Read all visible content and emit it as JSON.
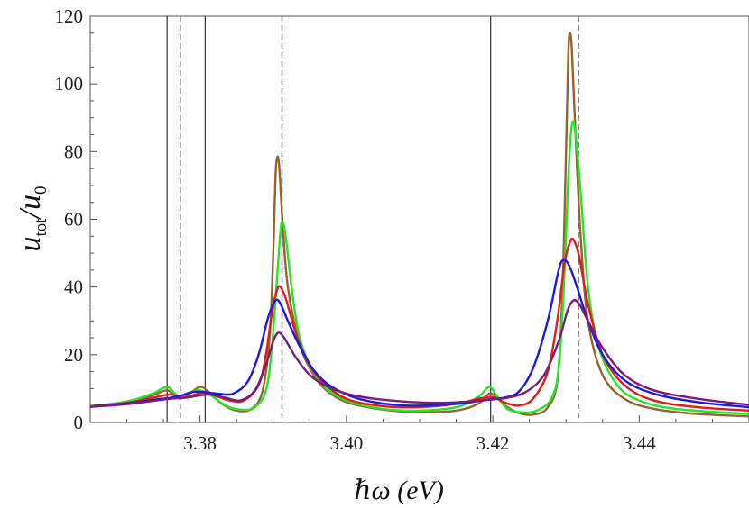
{
  "chart_data": {
    "type": "line",
    "xlabel": "ℏω (eV)",
    "ylabel_main": "u",
    "ylabel_sub_top": "tot",
    "ylabel_slash": "/",
    "ylabel_sub_bottom": "0",
    "xlim": [
      3.365,
      3.455
    ],
    "ylim": [
      0,
      120
    ],
    "x_ticks": [
      3.38,
      3.4,
      3.42,
      3.44
    ],
    "x_tick_labels": [
      "3.38",
      "3.40",
      "3.42",
      "3.44"
    ],
    "y_ticks": [
      0,
      20,
      40,
      60,
      80,
      100,
      120
    ],
    "y_tick_labels": [
      "0",
      "20",
      "40",
      "60",
      "80",
      "100",
      "120"
    ],
    "grid": false,
    "legend": "none",
    "vlines_solid": [
      3.3755,
      3.3807,
      3.4197
    ],
    "vlines_dashed": [
      3.3773,
      3.3912,
      3.4317
    ],
    "series": [
      {
        "color": "#96642f",
        "points": [
          [
            3.365,
            4.8
          ],
          [
            3.37,
            6.0
          ],
          [
            3.3735,
            8.0
          ],
          [
            3.3755,
            9.5
          ],
          [
            3.377,
            7.5
          ],
          [
            3.3785,
            8.5
          ],
          [
            3.38,
            10.5
          ],
          [
            3.3812,
            9.0
          ],
          [
            3.383,
            5.5
          ],
          [
            3.385,
            3.5
          ],
          [
            3.387,
            4.0
          ],
          [
            3.3885,
            9.0
          ],
          [
            3.3895,
            25
          ],
          [
            3.39,
            50
          ],
          [
            3.3903,
            72
          ],
          [
            3.3905,
            78
          ],
          [
            3.3908,
            76
          ],
          [
            3.3913,
            58
          ],
          [
            3.392,
            40
          ],
          [
            3.3935,
            24
          ],
          [
            3.395,
            16
          ],
          [
            3.397,
            10
          ],
          [
            3.4,
            6.0
          ],
          [
            3.405,
            3.8
          ],
          [
            3.41,
            3.0
          ],
          [
            3.415,
            3.5
          ],
          [
            3.418,
            5.5
          ],
          [
            3.4195,
            8.5
          ],
          [
            3.4205,
            7.5
          ],
          [
            3.422,
            4.5
          ],
          [
            3.424,
            2.5
          ],
          [
            3.426,
            2.5
          ],
          [
            3.4275,
            4.5
          ],
          [
            3.4288,
            12
          ],
          [
            3.4295,
            38
          ],
          [
            3.43,
            80
          ],
          [
            3.4303,
            108
          ],
          [
            3.4305,
            115
          ],
          [
            3.4308,
            110
          ],
          [
            3.4313,
            85
          ],
          [
            3.432,
            55
          ],
          [
            3.433,
            30
          ],
          [
            3.435,
            14
          ],
          [
            3.438,
            7.0
          ],
          [
            3.442,
            4.0
          ],
          [
            3.448,
            2.5
          ],
          [
            3.455,
            1.8
          ]
        ]
      },
      {
        "color": "#22e626",
        "points": [
          [
            3.365,
            4.8
          ],
          [
            3.37,
            6.2
          ],
          [
            3.3735,
            8.5
          ],
          [
            3.3755,
            10.5
          ],
          [
            3.377,
            7.8
          ],
          [
            3.3785,
            8.8
          ],
          [
            3.38,
            9.5
          ],
          [
            3.3815,
            8.0
          ],
          [
            3.3835,
            5.0
          ],
          [
            3.3855,
            3.8
          ],
          [
            3.3875,
            4.5
          ],
          [
            3.389,
            9.5
          ],
          [
            3.3898,
            22
          ],
          [
            3.3905,
            42
          ],
          [
            3.391,
            57
          ],
          [
            3.3913,
            59
          ],
          [
            3.3917,
            55
          ],
          [
            3.3925,
            40
          ],
          [
            3.3935,
            26
          ],
          [
            3.395,
            17
          ],
          [
            3.397,
            10.5
          ],
          [
            3.4,
            6.5
          ],
          [
            3.405,
            4.0
          ],
          [
            3.41,
            3.5
          ],
          [
            3.415,
            4.5
          ],
          [
            3.418,
            7.5
          ],
          [
            3.4195,
            10.5
          ],
          [
            3.4205,
            8.0
          ],
          [
            3.422,
            4.0
          ],
          [
            3.424,
            3.0
          ],
          [
            3.426,
            3.5
          ],
          [
            3.428,
            7.0
          ],
          [
            3.429,
            16
          ],
          [
            3.4297,
            40
          ],
          [
            3.4303,
            72
          ],
          [
            3.4308,
            88
          ],
          [
            3.4313,
            85
          ],
          [
            3.432,
            68
          ],
          [
            3.433,
            40
          ],
          [
            3.4345,
            22
          ],
          [
            3.437,
            11
          ],
          [
            3.44,
            6.5
          ],
          [
            3.445,
            4.0
          ],
          [
            3.455,
            2.5
          ]
        ]
      },
      {
        "color": "#e61a1a",
        "points": [
          [
            3.365,
            4.8
          ],
          [
            3.37,
            5.8
          ],
          [
            3.374,
            7.5
          ],
          [
            3.376,
            8.3
          ],
          [
            3.3775,
            7.3
          ],
          [
            3.379,
            8.0
          ],
          [
            3.3805,
            8.8
          ],
          [
            3.382,
            8.0
          ],
          [
            3.384,
            6.5
          ],
          [
            3.386,
            6.5
          ],
          [
            3.388,
            11
          ],
          [
            3.389,
            20
          ],
          [
            3.3898,
            32
          ],
          [
            3.3905,
            39
          ],
          [
            3.391,
            40
          ],
          [
            3.3918,
            36
          ],
          [
            3.393,
            27
          ],
          [
            3.3945,
            19
          ],
          [
            3.3965,
            12.5
          ],
          [
            3.4,
            7.0
          ],
          [
            3.405,
            4.8
          ],
          [
            3.41,
            4.5
          ],
          [
            3.415,
            5.5
          ],
          [
            3.418,
            7.0
          ],
          [
            3.42,
            7.5
          ],
          [
            3.4215,
            6.0
          ],
          [
            3.4235,
            5.0
          ],
          [
            3.4255,
            7.0
          ],
          [
            3.4275,
            15
          ],
          [
            3.4288,
            30
          ],
          [
            3.4298,
            47
          ],
          [
            3.4305,
            53
          ],
          [
            3.431,
            54
          ],
          [
            3.4318,
            49
          ],
          [
            3.433,
            35
          ],
          [
            3.435,
            20
          ],
          [
            3.438,
            11
          ],
          [
            3.442,
            6.5
          ],
          [
            3.448,
            4.5
          ],
          [
            3.455,
            3.5
          ]
        ]
      },
      {
        "color": "#1a1ae6",
        "points": [
          [
            3.365,
            4.8
          ],
          [
            3.37,
            5.6
          ],
          [
            3.374,
            6.8
          ],
          [
            3.376,
            7.3
          ],
          [
            3.3775,
            8.0
          ],
          [
            3.379,
            9.0
          ],
          [
            3.3805,
            9.0
          ],
          [
            3.3825,
            8.5
          ],
          [
            3.3845,
            8.5
          ],
          [
            3.3865,
            12
          ],
          [
            3.388,
            20
          ],
          [
            3.3893,
            31
          ],
          [
            3.3903,
            36
          ],
          [
            3.391,
            35
          ],
          [
            3.392,
            30
          ],
          [
            3.3935,
            23
          ],
          [
            3.3955,
            15.5
          ],
          [
            3.398,
            10.5
          ],
          [
            3.402,
            6.8
          ],
          [
            3.408,
            5.0
          ],
          [
            3.415,
            5.5
          ],
          [
            3.4185,
            6.5
          ],
          [
            3.42,
            7.0
          ],
          [
            3.4215,
            7.3
          ],
          [
            3.4235,
            9.0
          ],
          [
            3.4255,
            16
          ],
          [
            3.4275,
            30
          ],
          [
            3.429,
            45
          ],
          [
            3.4297,
            48
          ],
          [
            3.4305,
            46
          ],
          [
            3.4315,
            40
          ],
          [
            3.433,
            30
          ],
          [
            3.435,
            20
          ],
          [
            3.438,
            12.5
          ],
          [
            3.442,
            8.5
          ],
          [
            3.448,
            6.0
          ],
          [
            3.455,
            4.5
          ]
        ]
      },
      {
        "color": "#7a1a7a",
        "points": [
          [
            3.365,
            4.6
          ],
          [
            3.37,
            5.4
          ],
          [
            3.374,
            6.5
          ],
          [
            3.376,
            7.0
          ],
          [
            3.378,
            7.3
          ],
          [
            3.38,
            8.0
          ],
          [
            3.3815,
            8.2
          ],
          [
            3.3835,
            7.3
          ],
          [
            3.3855,
            6.5
          ],
          [
            3.3875,
            9.5
          ],
          [
            3.389,
            17
          ],
          [
            3.39,
            24
          ],
          [
            3.3907,
            26.5
          ],
          [
            3.3915,
            25
          ],
          [
            3.393,
            19.5
          ],
          [
            3.395,
            14
          ],
          [
            3.3975,
            10.5
          ],
          [
            3.401,
            8.0
          ],
          [
            3.406,
            6.5
          ],
          [
            3.412,
            5.8
          ],
          [
            3.417,
            6.2
          ],
          [
            3.42,
            6.8
          ],
          [
            3.422,
            7.3
          ],
          [
            3.4245,
            9.0
          ],
          [
            3.427,
            14
          ],
          [
            3.429,
            24
          ],
          [
            3.4302,
            33
          ],
          [
            3.431,
            36
          ],
          [
            3.4318,
            35
          ],
          [
            3.433,
            30
          ],
          [
            3.435,
            22
          ],
          [
            3.438,
            14
          ],
          [
            3.442,
            9.5
          ],
          [
            3.448,
            7.0
          ],
          [
            3.455,
            5.2
          ]
        ]
      }
    ]
  }
}
